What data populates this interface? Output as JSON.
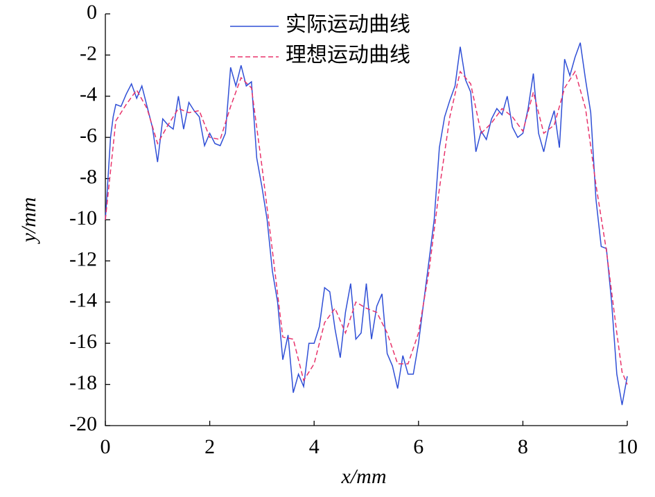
{
  "chart_data": {
    "type": "line",
    "xlabel": "x/mm",
    "ylabel": "y/mm",
    "xlim": [
      0,
      10
    ],
    "xticks": [
      0,
      2,
      4,
      6,
      8,
      10
    ],
    "ylim": [
      -20,
      0
    ],
    "yticks": [
      -20,
      -18,
      -16,
      -14,
      -12,
      -10,
      -8,
      -6,
      -4,
      -2,
      0
    ],
    "legend": "upper center",
    "series": [
      {
        "name": "实际运动曲线",
        "color": "#2f4fd6",
        "dash": "solid",
        "x": [
          0,
          0.05,
          0.1,
          0.15,
          0.2,
          0.3,
          0.4,
          0.5,
          0.6,
          0.7,
          0.8,
          0.9,
          1.0,
          1.1,
          1.2,
          1.3,
          1.4,
          1.5,
          1.6,
          1.7,
          1.8,
          1.9,
          2.0,
          2.1,
          2.2,
          2.3,
          2.4,
          2.5,
          2.6,
          2.7,
          2.8,
          2.9,
          3.0,
          3.1,
          3.2,
          3.3,
          3.4,
          3.5,
          3.6,
          3.7,
          3.8,
          3.9,
          4.0,
          4.1,
          4.2,
          4.3,
          4.4,
          4.5,
          4.6,
          4.7,
          4.8,
          4.9,
          5.0,
          5.1,
          5.2,
          5.3,
          5.4,
          5.5,
          5.6,
          5.7,
          5.8,
          5.9,
          6.0,
          6.1,
          6.2,
          6.3,
          6.4,
          6.5,
          6.6,
          6.7,
          6.8,
          6.9,
          7.0,
          7.1,
          7.2,
          7.3,
          7.4,
          7.5,
          7.6,
          7.7,
          7.8,
          7.9,
          8.0,
          8.1,
          8.2,
          8.3,
          8.4,
          8.5,
          8.6,
          8.7,
          8.8,
          8.9,
          9.0,
          9.1,
          9.2,
          9.3,
          9.4,
          9.5,
          9.6,
          9.7,
          9.8,
          9.9,
          10.0
        ],
        "values": [
          -10,
          -8,
          -6,
          -5,
          -4.4,
          -4.5,
          -3.9,
          -3.4,
          -4.1,
          -3.5,
          -4.5,
          -5.5,
          -7.2,
          -5.1,
          -5.4,
          -5.6,
          -4.0,
          -5.6,
          -4.3,
          -4.7,
          -5.0,
          -6.4,
          -5.8,
          -6.3,
          -6.4,
          -5.8,
          -2.6,
          -3.5,
          -2.5,
          -3.5,
          -3.3,
          -7,
          -8.4,
          -10,
          -12.5,
          -14,
          -16.8,
          -15.6,
          -18.4,
          -17.5,
          -18.1,
          -16,
          -16,
          -15.2,
          -13.3,
          -13.5,
          -15.3,
          -16.7,
          -14.5,
          -13.1,
          -15.8,
          -15.5,
          -13.1,
          -15.8,
          -14.2,
          -13.6,
          -16.5,
          -17.1,
          -18.2,
          -16.6,
          -17.5,
          -17.5,
          -16,
          -14,
          -12,
          -10,
          -6.5,
          -5,
          -4.2,
          -3.5,
          -1.6,
          -3.2,
          -3.8,
          -6.7,
          -5.7,
          -6.1,
          -5.1,
          -4.6,
          -4.9,
          -4.0,
          -5.5,
          -6.0,
          -5.8,
          -4.6,
          -2.9,
          -5.8,
          -6.7,
          -5.5,
          -4.7,
          -6.5,
          -2.2,
          -3.0,
          -2.1,
          -1.4,
          -3.2,
          -4.8,
          -9,
          -11.3,
          -11.4,
          -14,
          -17.5,
          -19,
          -17.6
        ]
      },
      {
        "name": "理想运动曲线",
        "color": "#e8336b",
        "dash": "dashed",
        "x": [
          0,
          0.2,
          0.4,
          0.6,
          0.8,
          1.0,
          1.2,
          1.4,
          1.6,
          1.8,
          2.0,
          2.2,
          2.4,
          2.6,
          2.8,
          3.0,
          3.2,
          3.4,
          3.6,
          3.8,
          4.0,
          4.2,
          4.4,
          4.6,
          4.8,
          5.0,
          5.2,
          5.4,
          5.6,
          5.8,
          6.0,
          6.2,
          6.4,
          6.6,
          6.8,
          7.0,
          7.2,
          7.4,
          7.6,
          7.8,
          8.0,
          8.2,
          8.4,
          8.6,
          8.8,
          9.0,
          9.2,
          9.4,
          9.6,
          9.8,
          9.9,
          10.0
        ],
        "values": [
          -10,
          -5.2,
          -4.4,
          -3.7,
          -4.6,
          -6.3,
          -5.4,
          -4.6,
          -4.8,
          -4.7,
          -6.0,
          -6.1,
          -4.5,
          -3.1,
          -3.6,
          -7.4,
          -11.5,
          -15.7,
          -15.8,
          -17.8,
          -17,
          -15,
          -14.3,
          -15.5,
          -14,
          -14.3,
          -14.5,
          -15.5,
          -17,
          -17,
          -15.5,
          -12.5,
          -8.5,
          -5,
          -2.8,
          -3.4,
          -5.8,
          -5.3,
          -4.6,
          -5.0,
          -5.7,
          -3.8,
          -5.8,
          -5.4,
          -3.6,
          -2.8,
          -4.6,
          -8.3,
          -11.5,
          -15.5,
          -17.4,
          -18
        ]
      }
    ]
  }
}
